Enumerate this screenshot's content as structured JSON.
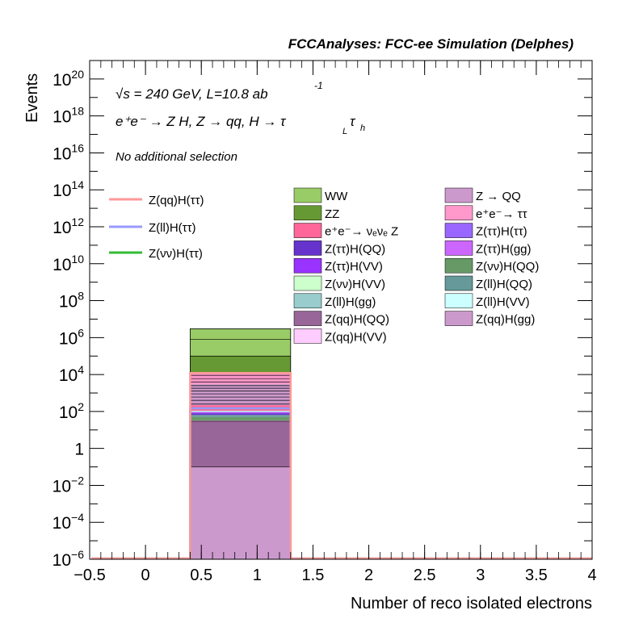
{
  "header": "FCCAnalyses: FCC-ee Simulation (Delphes)",
  "annotations": {
    "energy": "√s = 240 GeV, L=10.8 ab",
    "energy_exp": "-1",
    "process": "e⁺e⁻ → Z H, Z → qq, H → τ",
    "process_sub1": "L",
    "process_tau2": "τ",
    "process_sub2": "h",
    "selection": "No additional selection"
  },
  "colors": {
    "frame": "#000000",
    "signal_qq": "#ff9999",
    "signal_ll": "#9999ff",
    "signal_nunu": "#33bb33"
  },
  "chart_data": {
    "type": "bar",
    "xlabel": "Number of reco isolated electrons",
    "ylabel": "Events",
    "xlim": [
      -0.5,
      4
    ],
    "ylim": [
      1e-06,
      1e+21
    ],
    "yscale": "log",
    "bin": [
      0.4,
      1.3
    ],
    "x_ticks": [
      {
        "v": -0.5,
        "label": "−0.5"
      },
      {
        "v": 0,
        "label": "0"
      },
      {
        "v": 0.5,
        "label": "0.5"
      },
      {
        "v": 1,
        "label": "1"
      },
      {
        "v": 1.5,
        "label": "1.5"
      },
      {
        "v": 2,
        "label": "2"
      },
      {
        "v": 2.5,
        "label": "2.5"
      },
      {
        "v": 3,
        "label": "3"
      },
      {
        "v": 3.5,
        "label": "3.5"
      },
      {
        "v": 4,
        "label": "4"
      }
    ],
    "y_ticks": [
      {
        "exp": -6,
        "base": "10",
        "sup": "−6"
      },
      {
        "exp": -4,
        "base": "10",
        "sup": "−4"
      },
      {
        "exp": -2,
        "base": "10",
        "sup": "−2"
      },
      {
        "exp": 0,
        "base": "1",
        "sup": ""
      },
      {
        "exp": 2,
        "base": "10",
        "sup": "2"
      },
      {
        "exp": 4,
        "base": "10",
        "sup": "4"
      },
      {
        "exp": 6,
        "base": "10",
        "sup": "6"
      },
      {
        "exp": 8,
        "base": "10",
        "sup": "8"
      },
      {
        "exp": 10,
        "base": "10",
        "sup": "10"
      },
      {
        "exp": 12,
        "base": "10",
        "sup": "12"
      },
      {
        "exp": 14,
        "base": "10",
        "sup": "14"
      },
      {
        "exp": 16,
        "base": "10",
        "sup": "16"
      },
      {
        "exp": 18,
        "base": "10",
        "sup": "18"
      },
      {
        "exp": 20,
        "base": "10",
        "sup": "20"
      }
    ],
    "stack": [
      {
        "name": "Z(qq)H(gg)",
        "color": "#cc99cc",
        "top": 0.1
      },
      {
        "name": "Z(qq)H(QQ)",
        "color": "#996699",
        "top": 30
      },
      {
        "name": "Z(qq)H(VV)",
        "color": "#ffccff",
        "top": 33
      },
      {
        "name": "Z(νν)H(QQ)",
        "color": "#669966",
        "top": 50
      },
      {
        "name": "Z(ll)H(QQ)",
        "color": "#669999",
        "top": 65
      },
      {
        "name": "Z(ττ)H(QQ)",
        "color": "#6633cc",
        "top": 80
      },
      {
        "name": "Z(ττ)H(gg)",
        "color": "#cc66ff",
        "top": 85
      },
      {
        "name": "Z(ττ)H(VV)",
        "color": "#9933ff",
        "top": 90
      },
      {
        "name": "Z(ττ)H(ττ)",
        "color": "#9966ff",
        "top": 95
      },
      {
        "name": "Z(νν)H(VV)",
        "color": "#ccffcc",
        "top": 100
      },
      {
        "name": "Z(ll)H(gg)",
        "color": "#99cccc",
        "top": 105
      },
      {
        "name": "Z(ll)H(VV)",
        "color": "#ccffff",
        "top": 110
      },
      {
        "name": "e⁺e⁻→ νₑνₑ Z",
        "color": "#ff6699",
        "top": 220
      },
      {
        "name": "Z → QQ",
        "color": "#cc99cc",
        "top": 3000
      },
      {
        "name": "e⁺e⁻→ ττ",
        "color": "#ff99cc",
        "top": 12000
      },
      {
        "name": "ZZ",
        "color": "#669933",
        "top": 100000
      },
      {
        "name": "WW",
        "color": "#99cc66",
        "top": 3000000
      }
    ],
    "stack_lines": [
      0.1,
      30,
      250,
      400,
      600,
      900,
      1300,
      1800,
      2500,
      4000,
      6000,
      9000,
      12000,
      100000,
      800000
    ],
    "signals": [
      {
        "name": "Z(qq)H(ττ)",
        "color": "#ff9999",
        "value": 12000
      },
      {
        "name": "Z(ll)H(ττ)",
        "color": "#9999ff",
        "value": 150
      },
      {
        "name": "Z(νν)H(ττ)",
        "color": "#33bb33",
        "value": 150
      }
    ],
    "legend_signals": [
      "Z(qq)H(ττ)",
      "Z(ll)H(ττ)",
      "Z(νν)H(ττ)"
    ],
    "legend_backgrounds": [
      {
        "name": "WW",
        "color": "#99cc66"
      },
      {
        "name": "Z → QQ",
        "color": "#cc99cc"
      },
      {
        "name": "ZZ",
        "color": "#669933"
      },
      {
        "name": "e⁺e⁻→ ττ",
        "color": "#ff99cc"
      },
      {
        "name": "e⁺e⁻→ νₑνₑ Z",
        "color": "#ff6699"
      },
      {
        "name": "Z(ττ)H(ττ)",
        "color": "#9966ff"
      },
      {
        "name": "Z(ττ)H(QQ)",
        "color": "#6633cc"
      },
      {
        "name": "Z(ττ)H(gg)",
        "color": "#cc66ff"
      },
      {
        "name": "Z(ττ)H(VV)",
        "color": "#9933ff"
      },
      {
        "name": "Z(νν)H(QQ)",
        "color": "#669966"
      },
      {
        "name": "Z(νν)H(VV)",
        "color": "#ccffcc"
      },
      {
        "name": "Z(ll)H(QQ)",
        "color": "#669999"
      },
      {
        "name": "Z(ll)H(gg)",
        "color": "#99cccc"
      },
      {
        "name": "Z(ll)H(VV)",
        "color": "#ccffff"
      },
      {
        "name": "Z(qq)H(QQ)",
        "color": "#996699"
      },
      {
        "name": "Z(qq)H(gg)",
        "color": "#cc99cc"
      },
      {
        "name": "Z(qq)H(VV)",
        "color": "#ffccff"
      }
    ]
  }
}
